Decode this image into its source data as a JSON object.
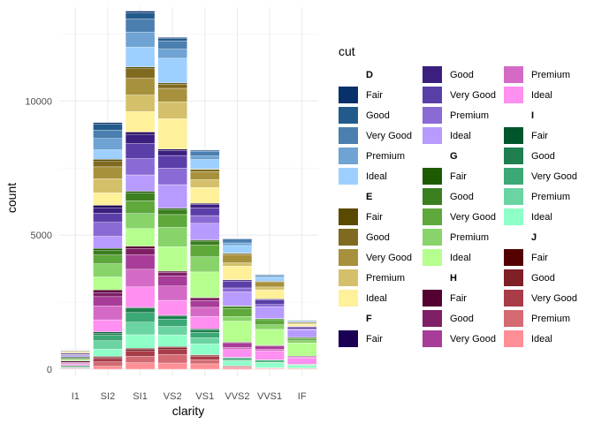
{
  "chart_data": {
    "type": "bar",
    "stacked": true,
    "title": "",
    "xlabel": "clarity",
    "ylabel": "count",
    "ylim": [
      0,
      13500
    ],
    "yticks": [
      0,
      5000,
      10000
    ],
    "ytick_labels": [
      "0",
      "5000",
      "10000"
    ],
    "grid": true,
    "legend_position": "right",
    "legend_title": "cut",
    "categories": [
      "I1",
      "SI2",
      "SI1",
      "VS2",
      "VS1",
      "VVS2",
      "VVS1",
      "IF"
    ],
    "groups": [
      {
        "name": "D",
        "series": [
          {
            "name": "Fair",
            "color": "#08306b",
            "values": [
              4,
              56,
              58,
              25,
              5,
              9,
              3,
              3
            ]
          },
          {
            "name": "Good",
            "color": "#235a8c",
            "values": [
              8,
              223,
              237,
              104,
              43,
              25,
              13,
              9
            ]
          },
          {
            "name": "Very Good",
            "color": "#4a7fb0",
            "values": [
              5,
              314,
              494,
              309,
              175,
              141,
              52,
              23
            ]
          },
          {
            "name": "Premium",
            "color": "#6fa3d4",
            "values": [
              12,
              421,
              556,
              339,
              131,
              94,
              40,
              10
            ]
          },
          {
            "name": "Ideal",
            "color": "#9dd0ff",
            "values": [
              13,
              356,
              738,
              920,
              351,
              284,
              144,
              28
            ]
          }
        ]
      },
      {
        "name": "E",
        "series": [
          {
            "name": "Fair",
            "color": "#5a4a00",
            "values": [
              9,
              78,
              65,
              42,
              14,
              13,
              3,
              0
            ]
          },
          {
            "name": "Good",
            "color": "#7f6a1f",
            "values": [
              23,
              202,
              355,
              160,
              89,
              52,
              43,
              9
            ]
          },
          {
            "name": "Very Good",
            "color": "#a8913c",
            "values": [
              22,
              445,
              626,
              503,
              293,
              298,
              170,
              43
            ]
          },
          {
            "name": "Premium",
            "color": "#d4c06a",
            "values": [
              30,
              519,
              614,
              629,
              292,
              121,
              105,
              27
            ]
          },
          {
            "name": "Ideal",
            "color": "#fff09a",
            "values": [
              18,
              469,
              766,
              1136,
              593,
              507,
              335,
              79
            ]
          }
        ]
      },
      {
        "name": "F",
        "series": [
          {
            "name": "Fair",
            "color": "#1a0055",
            "values": [
              35,
              89,
              83,
              53,
              33,
              10,
              5,
              4
            ]
          },
          {
            "name": "Good",
            "color": "#3b1f7f",
            "values": [
              19,
              201,
              349,
              184,
              132,
              50,
              35,
              20
            ]
          },
          {
            "name": "Very Good",
            "color": "#5b3fa8",
            "values": [
              13,
              343,
              559,
              466,
              293,
              249,
              174,
              67
            ]
          },
          {
            "name": "Premium",
            "color": "#8a6ad4",
            "values": [
              34,
              523,
              608,
              619,
              290,
              146,
              80,
              31
            ]
          },
          {
            "name": "Ideal",
            "color": "#b89bff",
            "values": [
              42,
              453,
              608,
              879,
              616,
              520,
              440,
              289
            ]
          }
        ]
      },
      {
        "name": "G",
        "series": [
          {
            "name": "Fair",
            "color": "#1e5a00",
            "values": [
              53,
              80,
              69,
              45,
              45,
              17,
              3,
              2
            ]
          },
          {
            "name": "Good",
            "color": "#3b7f1f",
            "values": [
              19,
              163,
              284,
              192,
              152,
              75,
              41,
              39
            ]
          },
          {
            "name": "Very Good",
            "color": "#5ea83c",
            "values": [
              16,
              327,
              474,
              479,
              432,
              302,
              190,
              79
            ]
          },
          {
            "name": "Premium",
            "color": "#88d46a",
            "values": [
              46,
              492,
              566,
              721,
              566,
              178,
              171,
              87
            ]
          },
          {
            "name": "Ideal",
            "color": "#b6ff8f",
            "values": [
              16,
              486,
              660,
              910,
              953,
              774,
              594,
              491
            ]
          }
        ]
      },
      {
        "name": "H",
        "series": [
          {
            "name": "Fair",
            "color": "#550033",
            "values": [
              52,
              91,
              75,
              41,
              32,
              11,
              1,
              0
            ]
          },
          {
            "name": "Good",
            "color": "#7f1f66",
            "values": [
              14,
              158,
              235,
              138,
              77,
              45,
              31,
              4
            ]
          },
          {
            "name": "Very Good",
            "color": "#a83c99",
            "values": [
              12,
              343,
              547,
              376,
              257,
              145,
              115,
              29
            ]
          },
          {
            "name": "Premium",
            "color": "#d46ac6",
            "values": [
              46,
              521,
              655,
              532,
              336,
              82,
              62,
              40
            ]
          },
          {
            "name": "Ideal",
            "color": "#ff8ff0",
            "values": [
              38,
              450,
              763,
              556,
              467,
              289,
              326,
              226
            ]
          }
        ]
      },
      {
        "name": "I",
        "series": [
          {
            "name": "Fair",
            "color": "#00552a",
            "values": [
              34,
              45,
              30,
              32,
              25,
              8,
              1,
              0
            ]
          },
          {
            "name": "Good",
            "color": "#1f7f4f",
            "values": [
              9,
              81,
              165,
              110,
              103,
              26,
              22,
              6
            ]
          },
          {
            "name": "Very Good",
            "color": "#3ca875",
            "values": [
              8,
              200,
              358,
              274,
              205,
              71,
              69,
              19
            ]
          },
          {
            "name": "Premium",
            "color": "#6ad4a2",
            "values": [
              24,
              312,
              468,
              315,
              221,
              32,
              24,
              23
            ]
          },
          {
            "name": "Ideal",
            "color": "#8fffc8",
            "values": [
              17,
              274,
              504,
              438,
              408,
              178,
              179,
              95
            ]
          }
        ]
      },
      {
        "name": "J",
        "series": [
          {
            "name": "Fair",
            "color": "#550000",
            "values": [
              23,
              27,
              28,
              23,
              16,
              1,
              1,
              0
            ]
          },
          {
            "name": "Good",
            "color": "#7f1f26",
            "values": [
              4,
              53,
              88,
              90,
              52,
              13,
              1,
              2
            ]
          },
          {
            "name": "Very Good",
            "color": "#a83c48",
            "values": [
              8,
              128,
              186,
              184,
              120,
              29,
              19,
              8
            ]
          },
          {
            "name": "Premium",
            "color": "#d46a72",
            "values": [
              13,
              161,
              237,
              315,
              153,
              34,
              12,
              12
            ]
          },
          {
            "name": "Ideal",
            "color": "#ff8f96",
            "values": [
              2,
              110,
              243,
              231,
              201,
              54,
              29,
              25
            ]
          }
        ]
      }
    ]
  }
}
